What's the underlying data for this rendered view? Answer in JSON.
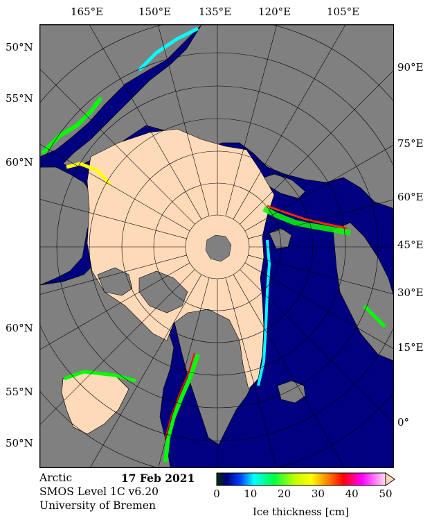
{
  "lon_labels_top": [
    "165°E",
    "150°E",
    "135°E",
    "120°E",
    "105°E"
  ],
  "lat_labels_left": [
    "50°N",
    "55°N",
    "60°N",
    "60°N",
    "55°N",
    "50°N"
  ],
  "lon_labels_right": [
    "90°E",
    "75°E",
    "60°E",
    "45°E",
    "30°E",
    "15°E",
    "0°"
  ],
  "info": {
    "region": "Arctic",
    "date": "17 Feb 2021",
    "product": "SMOS Level 1C v6.20",
    "institution": "University of Bremen"
  },
  "colorbar": {
    "ticks": [
      "0",
      "10",
      "20",
      "30",
      "40",
      "50"
    ],
    "label": "Ice thickness [cm]",
    "min": 0,
    "max": 50,
    "extend": "max"
  },
  "colors": {
    "ocean": "#000080",
    "land": "#808080",
    "thick_ice": "#ffdab9",
    "pole_hole": "#808080"
  }
}
